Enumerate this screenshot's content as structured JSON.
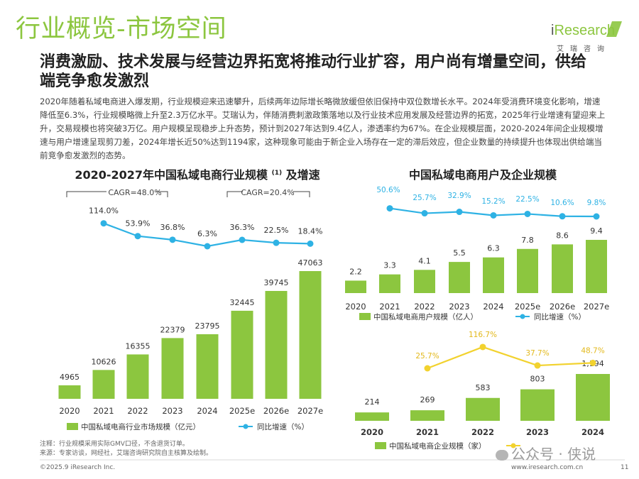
{
  "page": {
    "title": "行业概览-市场空间",
    "headline": "消费激励、技术发展与经营边界拓宽将推动行业扩容，用户尚有增量空间，供给端竞争愈发激烈",
    "body": "2020年随着私域电商进入爆发期，行业规模迎来迅速攀升，后续两年边际增长略微放缓但依旧保持中双位数增长水平。2024年受消费环境变化影响，增速降低至6.3%，行业规模略微上升至2.3万亿水平。艾瑞认为，伴随消费刺激政策落地以及行业技术应用发展及经营边界的拓宽，2025年行业增速有望迎来上升，交易规模也将突破3万亿。用户规模呈现稳步上升态势，预计到2027年达到9.4亿人，渗透率约为67%。在企业规模层面，2020-2024年间企业规模增速与用户增速呈现剪刀差，2024年增长近50%达到1194家，这种现象可能由于新企业入场存在一定的滞后效应，但企业数量的持续提升也体现出供给端当前竞争愈发激烈的态势。",
    "footnote_1": "注释：行业规模采用实际GMV口径，不含退货订单。",
    "footnote_2": "来源：专家访谈，网经社，艾瑞咨询研究院自主核算及绘制。",
    "copyright": "©2025.9 iResearch Inc.",
    "url": "www.iresearch.com.cn",
    "page_number": "11",
    "watermark": "公众号 · 侠说"
  },
  "logo": {
    "brand_i": "i",
    "brand_rest": "Research",
    "cn": "艾瑞咨询"
  },
  "colors": {
    "green": "#8cc63f",
    "blue": "#2eb2e4",
    "yellow": "#f2d22e",
    "dark": "#222222"
  },
  "chart_data": [
    {
      "type": "bar",
      "title": "2020-2027年中国私域电商行业规模",
      "title_superscript": "(1)",
      "title_suffix": "及增速",
      "categories": [
        "2020",
        "2021",
        "2022",
        "2023",
        "2024",
        "2025e",
        "2026e",
        "2027e"
      ],
      "series": [
        {
          "name": "中国私域电商行业市场规模（亿元）",
          "type": "bar",
          "values": [
            4965,
            10626,
            16355,
            22379,
            23795,
            32445,
            39745,
            47063
          ]
        },
        {
          "name": "同比增速（%）",
          "type": "line",
          "values": [
            null,
            114.0,
            53.9,
            36.8,
            6.3,
            36.3,
            22.5,
            18.4
          ],
          "labels": [
            "",
            "114.0%",
            "53.9%",
            "36.8%",
            "6.3%",
            "36.3%",
            "22.5%",
            "18.4%"
          ]
        }
      ],
      "annotations": [
        "CAGR=48.0%",
        "CAGR=20.4%"
      ],
      "legend_position": "bottom"
    },
    {
      "type": "bar",
      "title": "中国私域电商用户及企业规模",
      "categories": [
        "2020",
        "2021",
        "2022",
        "2023",
        "2024",
        "2025e",
        "2026e",
        "2027e"
      ],
      "series": [
        {
          "name": "中国私域电商用户规模（亿人）",
          "type": "bar",
          "values": [
            2.2,
            3.3,
            4.1,
            5.5,
            6.3,
            7.8,
            8.6,
            9.4
          ],
          "labels": [
            "2.2",
            "3.3",
            "4.1",
            "5.5",
            "6.3",
            "7.8",
            "8.6",
            "9.4"
          ]
        },
        {
          "name": "同比增速（%）",
          "type": "line",
          "values": [
            50.6,
            25.7,
            32.9,
            15.2,
            22.5,
            10.6,
            9.8
          ],
          "x": [
            "2021",
            "2022",
            "2023",
            "2024",
            "2025e",
            "2026e",
            "2027e"
          ],
          "labels": [
            "50.6%",
            "25.7%",
            "32.9%",
            "15.2%",
            "22.5%",
            "10.6%",
            "9.8%"
          ]
        }
      ],
      "legend_position": "bottom"
    },
    {
      "type": "bar",
      "categories": [
        "2020",
        "2021",
        "2022",
        "2023",
        "2024"
      ],
      "series": [
        {
          "name": "中国私域电商企业规模（家）",
          "type": "bar",
          "values": [
            214,
            269,
            583,
            803,
            1194
          ],
          "labels": [
            "214",
            "269",
            "583",
            "803",
            "1,194"
          ]
        },
        {
          "name": "同比增速（%）",
          "type": "line",
          "values": [
            25.7,
            116.7,
            37.7,
            48.7
          ],
          "x": [
            "2021",
            "2022",
            "2023",
            "2024"
          ],
          "labels": [
            "25.7%",
            "116.7%",
            "37.7%",
            "48.7%"
          ]
        }
      ],
      "legend_position": "bottom"
    }
  ]
}
